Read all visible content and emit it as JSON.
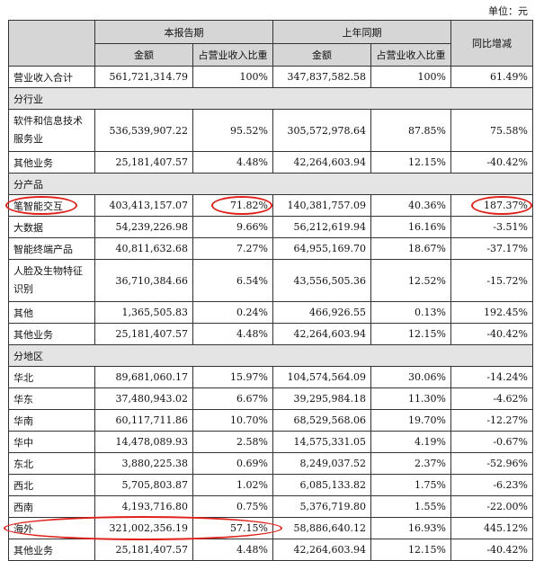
{
  "unit_label": "单位：元",
  "headers": {
    "current_period": "本报告期",
    "prior_period": "上年同期",
    "yoy_change": "同比增减",
    "amount": "金额",
    "share": "占营业收入比重"
  },
  "total": {
    "label": "营业收入合计",
    "cur": "561,721,314.79",
    "cur_pct": "100%",
    "prior": "347,837,582.58",
    "prior_pct": "100%",
    "yoy": "61.49%"
  },
  "sections": [
    {
      "title": "分行业",
      "rows": [
        {
          "label": "软件和信息技术服务业",
          "cur": "536,539,907.22",
          "cur_pct": "95.52%",
          "prior": "305,572,978.64",
          "prior_pct": "87.85%",
          "yoy": "75.58%"
        },
        {
          "label": "其他业务",
          "cur": "25,181,407.57",
          "cur_pct": "4.48%",
          "prior": "42,264,603.94",
          "prior_pct": "12.15%",
          "yoy": "-40.42%"
        }
      ]
    },
    {
      "title": "分产品",
      "rows": [
        {
          "label": "笔智能交互",
          "cur": "403,413,157.07",
          "cur_pct": "71.82%",
          "prior": "140,381,757.09",
          "prior_pct": "40.36%",
          "yoy": "187.37%"
        },
        {
          "label": "大数据",
          "cur": "54,239,226.98",
          "cur_pct": "9.66%",
          "prior": "56,212,619.94",
          "prior_pct": "16.16%",
          "yoy": "-3.51%"
        },
        {
          "label": "智能终端产品",
          "cur": "40,811,632.68",
          "cur_pct": "7.27%",
          "prior": "64,955,169.70",
          "prior_pct": "18.67%",
          "yoy": "-37.17%"
        },
        {
          "label": "人脸及生物特征识别",
          "cur": "36,710,384.66",
          "cur_pct": "6.54%",
          "prior": "43,556,505.36",
          "prior_pct": "12.52%",
          "yoy": "-15.72%"
        },
        {
          "label": "其他",
          "cur": "1,365,505.83",
          "cur_pct": "0.24%",
          "prior": "466,926.55",
          "prior_pct": "0.13%",
          "yoy": "192.45%"
        },
        {
          "label": "其他业务",
          "cur": "25,181,407.57",
          "cur_pct": "4.48%",
          "prior": "42,264,603.94",
          "prior_pct": "12.15%",
          "yoy": "-40.42%"
        }
      ]
    },
    {
      "title": "分地区",
      "rows": [
        {
          "label": "华北",
          "cur": "89,681,060.17",
          "cur_pct": "15.97%",
          "prior": "104,574,564.09",
          "prior_pct": "30.06%",
          "yoy": "-14.24%"
        },
        {
          "label": "华东",
          "cur": "37,480,943.02",
          "cur_pct": "6.67%",
          "prior": "39,295,984.18",
          "prior_pct": "11.30%",
          "yoy": "-4.62%"
        },
        {
          "label": "华南",
          "cur": "60,117,711.86",
          "cur_pct": "10.70%",
          "prior": "68,529,568.06",
          "prior_pct": "19.70%",
          "yoy": "-12.27%"
        },
        {
          "label": "华中",
          "cur": "14,478,089.93",
          "cur_pct": "2.58%",
          "prior": "14,575,331.05",
          "prior_pct": "4.19%",
          "yoy": "-0.67%"
        },
        {
          "label": "东北",
          "cur": "3,880,225.38",
          "cur_pct": "0.69%",
          "prior": "8,249,037.52",
          "prior_pct": "2.37%",
          "yoy": "-52.96%"
        },
        {
          "label": "西北",
          "cur": "5,705,803.87",
          "cur_pct": "1.02%",
          "prior": "6,085,133.82",
          "prior_pct": "1.75%",
          "yoy": "-6.23%"
        },
        {
          "label": "西南",
          "cur": "4,193,716.80",
          "cur_pct": "0.75%",
          "prior": "5,376,719.80",
          "prior_pct": "1.55%",
          "yoy": "-22.00%"
        },
        {
          "label": "海外",
          "cur": "321,002,356.19",
          "cur_pct": "57.15%",
          "prior": "58,886,640.12",
          "prior_pct": "16.93%",
          "yoy": "445.12%"
        },
        {
          "label": "其他业务",
          "cur": "25,181,407.57",
          "cur_pct": "4.48%",
          "prior": "42,264,603.94",
          "prior_pct": "12.15%",
          "yoy": "-40.42%"
        }
      ]
    }
  ]
}
